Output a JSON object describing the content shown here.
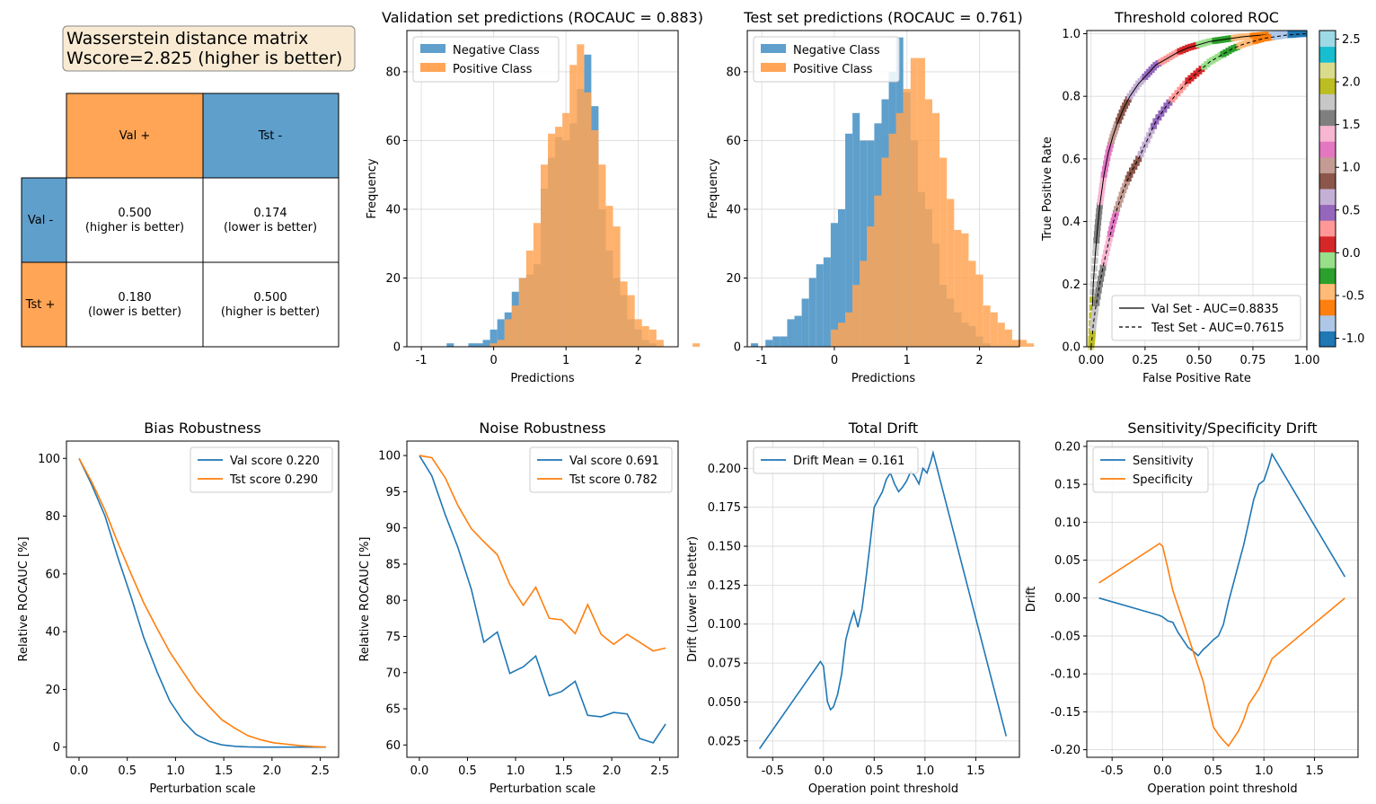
{
  "colors": {
    "blue": "#1f77b4",
    "orange": "#ff7f0e",
    "tab_blue": "#5f9fcc",
    "tab_orange": "#ffa555",
    "box_bg": "#f9ebd3"
  },
  "wasserstein": {
    "title_line1": "Wasserstein distance matrix",
    "title_line2": "Wscore=2.825 (higher is better)",
    "col_headers": [
      "Val +",
      "Tst -"
    ],
    "row_headers": [
      "Val -",
      "Tst +"
    ],
    "cells": [
      [
        "0.500",
        "(higher is better)",
        "0.174",
        "(lower is better)"
      ],
      [
        "0.180",
        "(lower is better)",
        "0.500",
        "(higher is better)"
      ]
    ]
  },
  "chart_data": [
    {
      "id": "val_hist",
      "type": "bar",
      "title": "Validation set predictions (ROCAUC = 0.883)",
      "xlabel": "Predictions",
      "ylabel": "Frequency",
      "xlim": [
        -1.2,
        2.55
      ],
      "ylim": [
        0,
        92
      ],
      "xticks": [
        "-1",
        "0",
        "1",
        "2"
      ],
      "yticks": [
        "0",
        "20",
        "40",
        "60",
        "80"
      ],
      "grid": true,
      "legend": "top-left",
      "series": [
        {
          "name": "Negative Class",
          "bin_start": -0.65,
          "bin_width": 0.1,
          "values": [
            1,
            0,
            0,
            1,
            1,
            2,
            5,
            8,
            10,
            16,
            20,
            21,
            24,
            46,
            55,
            61,
            60,
            65,
            75,
            85,
            70,
            40,
            28,
            20,
            15,
            8,
            5,
            2,
            1
          ]
        },
        {
          "name": "Positive Class",
          "bin_start": -0.05,
          "bin_width": 0.1,
          "values": [
            1,
            2,
            8,
            12,
            20,
            28,
            36,
            53,
            62,
            64,
            68,
            82,
            88,
            74,
            63,
            53,
            41,
            35,
            19,
            15,
            8,
            6,
            5,
            2,
            0,
            0,
            0,
            0,
            1
          ]
        }
      ]
    },
    {
      "id": "tst_hist",
      "type": "bar",
      "title": "Test set predictions (ROCAUC = 0.761)",
      "xlabel": "Predictions",
      "ylabel": "Frequency",
      "xlim": [
        -1.2,
        2.55
      ],
      "ylim": [
        0,
        92
      ],
      "xticks": [
        "-1",
        "0",
        "1",
        "2"
      ],
      "yticks": [
        "0",
        "20",
        "40",
        "60",
        "80"
      ],
      "grid": true,
      "legend": "top-left",
      "series": [
        {
          "name": "Negative Class",
          "bin_start": -1.15,
          "bin_width": 0.1,
          "values": [
            1,
            0,
            2,
            3,
            3,
            8,
            9,
            14,
            20,
            24,
            26,
            36,
            40,
            62,
            68,
            60,
            60,
            65,
            72,
            80,
            90,
            74,
            60,
            45,
            40,
            30,
            18,
            14,
            10,
            7,
            6,
            3,
            1
          ]
        },
        {
          "name": "Positive Class",
          "bin_start": -0.05,
          "bin_width": 0.1,
          "values": [
            5,
            7,
            10,
            18,
            25,
            35,
            44,
            55,
            62,
            68,
            75,
            84,
            84,
            72,
            68,
            55,
            43,
            34,
            33,
            25,
            21,
            12,
            10,
            7,
            5,
            2,
            2,
            1
          ]
        }
      ]
    },
    {
      "id": "roc",
      "type": "line",
      "title": "Threshold colored ROC",
      "xlabel": "False Positive Rate",
      "ylabel": "True Positive Rate",
      "xlim": [
        -0.02,
        1.0
      ],
      "ylim": [
        0,
        1.01
      ],
      "xticks": [
        "0.00",
        "0.25",
        "0.50",
        "0.75",
        "1.00"
      ],
      "yticks": [
        "0.0",
        "0.2",
        "0.4",
        "0.6",
        "0.8",
        "1.0"
      ],
      "grid": true,
      "legend": "bottom-right",
      "colorbar": {
        "min": -1.1,
        "max": 2.6,
        "ticks": [
          "-1.0",
          "-0.5",
          "0.0",
          "0.5",
          "1.0",
          "1.5",
          "2.0",
          "2.5"
        ],
        "colors": [
          "#1f77b4",
          "#aec7e8",
          "#ff7f0e",
          "#ffbb78",
          "#2ca02c",
          "#98df8a",
          "#d62728",
          "#ff9896",
          "#9467bd",
          "#c5b0d5",
          "#8c564b",
          "#c49c94",
          "#e377c2",
          "#f7b6d2",
          "#7f7f7f",
          "#c7c7c7",
          "#bcbd22",
          "#dbdb8d",
          "#17becf",
          "#9edae5"
        ]
      },
      "series": [
        {
          "name": "Val Set - AUC=0.8835",
          "x": [
            0,
            0.005,
            0.01,
            0.02,
            0.03,
            0.04,
            0.05,
            0.06,
            0.08,
            0.1,
            0.12,
            0.15,
            0.18,
            0.22,
            0.26,
            0.3,
            0.35,
            0.4,
            0.45,
            0.5,
            0.55,
            0.6,
            0.65,
            0.7,
            0.75,
            0.8,
            0.85,
            0.9,
            0.95,
            1.0
          ],
          "y": [
            0,
            0.1,
            0.2,
            0.3,
            0.38,
            0.45,
            0.5,
            0.55,
            0.62,
            0.67,
            0.71,
            0.76,
            0.8,
            0.84,
            0.87,
            0.9,
            0.92,
            0.94,
            0.955,
            0.965,
            0.975,
            0.98,
            0.985,
            0.99,
            0.993,
            0.996,
            0.998,
            0.999,
            1.0,
            1.0
          ]
        },
        {
          "name": "Test Set - AUC=0.7615",
          "x": [
            0,
            0.005,
            0.01,
            0.02,
            0.04,
            0.06,
            0.08,
            0.1,
            0.12,
            0.15,
            0.18,
            0.22,
            0.26,
            0.3,
            0.35,
            0.4,
            0.45,
            0.5,
            0.55,
            0.6,
            0.65,
            0.7,
            0.75,
            0.8,
            0.85,
            0.9,
            0.95,
            1.0
          ],
          "y": [
            0,
            0.03,
            0.07,
            0.12,
            0.2,
            0.27,
            0.33,
            0.39,
            0.44,
            0.5,
            0.55,
            0.6,
            0.66,
            0.72,
            0.77,
            0.81,
            0.85,
            0.88,
            0.91,
            0.93,
            0.95,
            0.965,
            0.975,
            0.985,
            0.99,
            0.995,
            0.998,
            1.0
          ]
        }
      ]
    },
    {
      "id": "bias",
      "type": "line",
      "title": "Bias Robustness",
      "xlabel": "Perturbation scale",
      "ylabel": "Relative ROCAUC [%]",
      "xlim": [
        -0.13,
        2.69
      ],
      "ylim": [
        -3.5,
        106
      ],
      "xticks": [
        "0.0",
        "0.5",
        "1.0",
        "1.5",
        "2.0",
        "2.5"
      ],
      "yticks": [
        "0",
        "20",
        "40",
        "60",
        "80",
        "100"
      ],
      "grid": false,
      "legend": "top-right",
      "x": [
        0,
        0.13,
        0.27,
        0.4,
        0.54,
        0.67,
        0.81,
        0.94,
        1.08,
        1.21,
        1.35,
        1.48,
        1.62,
        1.75,
        1.89,
        2.02,
        2.16,
        2.29,
        2.43,
        2.56
      ],
      "series": [
        {
          "name": "Val score 0.220",
          "values": [
            100,
            91,
            80,
            66,
            52,
            38,
            26,
            16,
            9,
            4.5,
            2,
            0.8,
            0.3,
            0.1,
            0,
            0,
            0,
            0,
            0,
            0
          ]
        },
        {
          "name": "Tst score 0.290",
          "values": [
            100,
            92,
            82,
            71,
            60,
            50,
            41,
            33,
            26,
            19.5,
            14,
            9.5,
            6.5,
            4,
            2.5,
            1.5,
            1,
            0.5,
            0.2,
            0
          ]
        }
      ]
    },
    {
      "id": "noise",
      "type": "line",
      "title": "Noise Robustness",
      "xlabel": "Perturbation scale",
      "ylabel": "Relative ROCAUC [%]",
      "xlim": [
        -0.13,
        2.69
      ],
      "ylim": [
        58.3,
        102
      ],
      "xticks": [
        "0.0",
        "0.5",
        "1.0",
        "1.5",
        "2.0",
        "2.5"
      ],
      "yticks": [
        "60",
        "65",
        "70",
        "75",
        "80",
        "85",
        "90",
        "95",
        "100"
      ],
      "grid": false,
      "legend": "top-right",
      "x": [
        0,
        0.13,
        0.27,
        0.4,
        0.54,
        0.67,
        0.81,
        0.94,
        1.08,
        1.21,
        1.35,
        1.48,
        1.62,
        1.75,
        1.89,
        2.02,
        2.16,
        2.29,
        2.43,
        2.56
      ],
      "series": [
        {
          "name": "Val score 0.691",
          "values": [
            100,
            97.2,
            91.8,
            87.3,
            81.5,
            74.2,
            75.6,
            69.9,
            70.8,
            72.3,
            66.8,
            67.4,
            68.8,
            64.1,
            63.9,
            64.5,
            64.3,
            60.9,
            60.3,
            62.9
          ]
        },
        {
          "name": "Tst score 0.782",
          "values": [
            100,
            99.7,
            96.9,
            93.1,
            89.9,
            88.1,
            86.3,
            82.2,
            79.3,
            81.8,
            77.5,
            77.3,
            75.4,
            79.4,
            75.3,
            73.9,
            75.3,
            74.2,
            73,
            73.4
          ]
        }
      ]
    },
    {
      "id": "drift",
      "type": "line",
      "title": "Total Drift",
      "xlabel": "Operation point threshold",
      "ylabel": "Drift (Lower is better)",
      "xlim": [
        -0.75,
        1.93
      ],
      "ylim": [
        0.0145,
        0.2175
      ],
      "xticks": [
        "-0.5",
        "0.0",
        "0.5",
        "1.0",
        "1.5"
      ],
      "yticks": [
        "0.025",
        "0.050",
        "0.075",
        "0.100",
        "0.125",
        "0.150",
        "0.175",
        "0.200"
      ],
      "grid": true,
      "legend": "top-left",
      "series": [
        {
          "name": "Drift Mean = 0.161",
          "x": [
            -0.63,
            -0.03,
            0.0,
            0.04,
            0.07,
            0.1,
            0.14,
            0.18,
            0.22,
            0.26,
            0.3,
            0.34,
            0.38,
            0.42,
            0.46,
            0.5,
            0.54,
            0.58,
            0.62,
            0.66,
            0.7,
            0.74,
            0.78,
            0.82,
            0.86,
            0.9,
            0.94,
            0.98,
            1.02,
            1.06,
            1.08,
            1.8
          ],
          "y": [
            0.02,
            0.076,
            0.073,
            0.05,
            0.045,
            0.047,
            0.055,
            0.068,
            0.09,
            0.1,
            0.108,
            0.098,
            0.11,
            0.13,
            0.152,
            0.175,
            0.18,
            0.185,
            0.193,
            0.197,
            0.19,
            0.185,
            0.188,
            0.192,
            0.198,
            0.195,
            0.19,
            0.2,
            0.197,
            0.205,
            0.21,
            0.028
          ]
        }
      ]
    },
    {
      "id": "sens_spec",
      "type": "line",
      "title": "Sensitivity/Specificity Drift",
      "xlabel": "Operation point threshold",
      "ylabel": "Drift",
      "xlim": [
        -0.75,
        1.93
      ],
      "ylim": [
        -0.21,
        0.207
      ],
      "xticks": [
        "-0.5",
        "0.0",
        "0.5",
        "1.0",
        "1.5"
      ],
      "yticks": [
        "-0.20",
        "-0.15",
        "-0.10",
        "-0.05",
        "0.00",
        "0.05",
        "0.10",
        "0.15",
        "0.20"
      ],
      "grid": true,
      "legend": "top-left",
      "series": [
        {
          "name": "Sensitivity",
          "x": [
            -0.63,
            -0.03,
            0.0,
            0.05,
            0.1,
            0.15,
            0.2,
            0.25,
            0.3,
            0.35,
            0.4,
            0.45,
            0.5,
            0.55,
            0.6,
            0.65,
            0.7,
            0.75,
            0.8,
            0.85,
            0.9,
            0.95,
            1.0,
            1.05,
            1.08,
            1.8
          ],
          "y": [
            0.0,
            -0.023,
            -0.025,
            -0.03,
            -0.032,
            -0.045,
            -0.055,
            -0.065,
            -0.07,
            -0.076,
            -0.068,
            -0.062,
            -0.055,
            -0.05,
            -0.035,
            -0.005,
            0.02,
            0.045,
            0.07,
            0.1,
            0.13,
            0.15,
            0.155,
            0.175,
            0.19,
            0.028
          ]
        },
        {
          "name": "Specificity",
          "x": [
            -0.63,
            -0.03,
            0.0,
            0.05,
            0.1,
            0.15,
            0.2,
            0.25,
            0.3,
            0.35,
            0.4,
            0.45,
            0.5,
            0.55,
            0.6,
            0.65,
            0.7,
            0.75,
            0.8,
            0.85,
            0.9,
            0.95,
            1.0,
            1.05,
            1.08,
            1.8
          ],
          "y": [
            0.02,
            0.072,
            0.068,
            0.04,
            0.01,
            -0.01,
            -0.03,
            -0.05,
            -0.07,
            -0.09,
            -0.11,
            -0.14,
            -0.17,
            -0.18,
            -0.188,
            -0.195,
            -0.185,
            -0.175,
            -0.16,
            -0.14,
            -0.13,
            -0.12,
            -0.105,
            -0.09,
            -0.08,
            0.0
          ]
        }
      ]
    }
  ]
}
